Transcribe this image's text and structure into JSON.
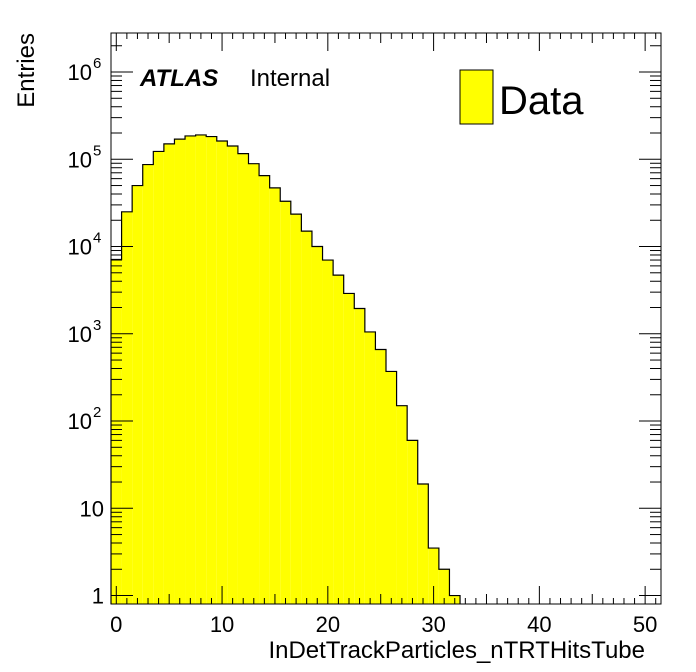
{
  "chart_data": {
    "type": "bar",
    "xlabel": "InDetTrackParticles_nTRTHitsTube",
    "ylabel": "Entries",
    "xlim": [
      -0.5,
      51.5
    ],
    "ylim": [
      0.8,
      2800000
    ],
    "yscale": "log",
    "x_ticks": [
      "0",
      "10",
      "20",
      "30",
      "40",
      "50"
    ],
    "y_ticks": [
      {
        "base": "1",
        "exp": ""
      },
      {
        "base": "10",
        "exp": ""
      },
      {
        "base": "10",
        "exp": "2"
      },
      {
        "base": "10",
        "exp": "3"
      },
      {
        "base": "10",
        "exp": "4"
      },
      {
        "base": "10",
        "exp": "5"
      },
      {
        "base": "10",
        "exp": "6"
      }
    ],
    "bin_width": 1,
    "bin_centers": [
      0,
      1,
      2,
      3,
      4,
      5,
      6,
      7,
      8,
      9,
      10,
      11,
      12,
      13,
      14,
      15,
      16,
      17,
      18,
      19,
      20,
      21,
      22,
      23,
      24,
      25,
      26,
      27,
      28,
      29,
      30,
      31,
      32
    ],
    "values": [
      7100,
      25000,
      50000,
      87000,
      123000,
      150000,
      170000,
      185000,
      190000,
      182000,
      162000,
      142000,
      116000,
      89000,
      65000,
      47000,
      33000,
      23500,
      15000,
      10000,
      7000,
      4700,
      2900,
      1950,
      1050,
      660,
      370,
      150,
      60,
      19,
      3.5,
      2.0,
      1.0
    ],
    "grid": false,
    "fill_color": "#ffff00",
    "series": [
      {
        "name": "Data",
        "color": "#ffff00"
      }
    ],
    "legend_position": "top-right",
    "annotation": {
      "experiment": "ATLAS",
      "status": "Internal"
    }
  }
}
